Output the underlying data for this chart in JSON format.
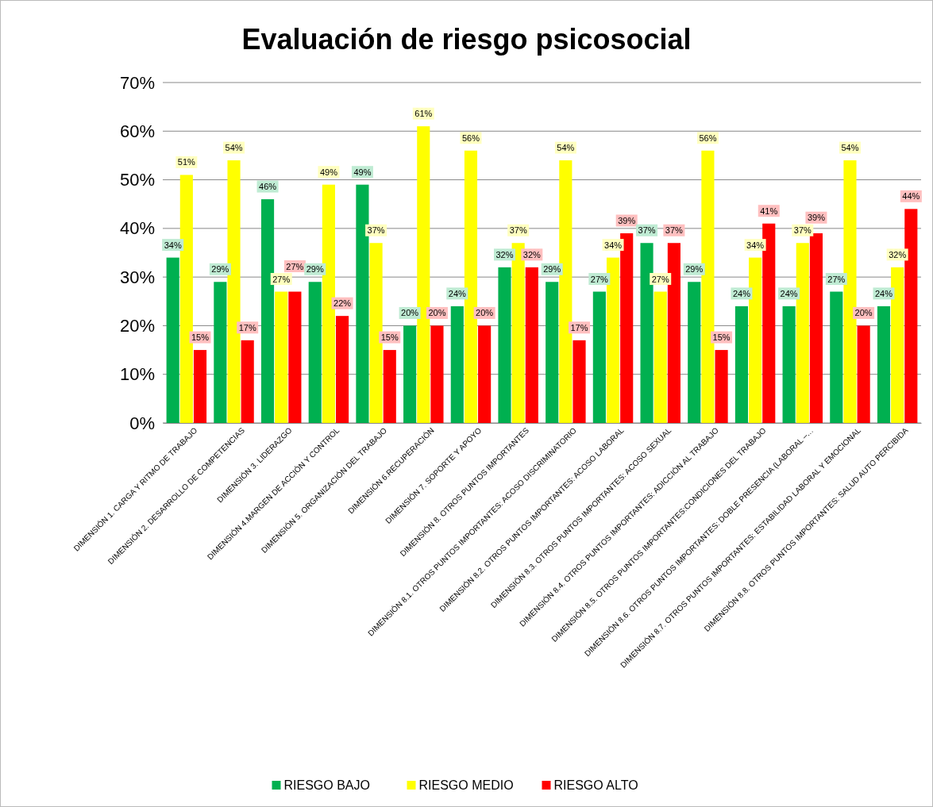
{
  "chart_data": {
    "type": "bar",
    "title": "Evaluación de riesgo psicosocial",
    "categories": [
      "DIMENSIÓN 1. CARGA Y RITMO DE TRABAJO",
      "DIMENSIÓN 2. DESARROLLO DE COMPETENCIAS",
      "DIMENSIÓN 3. LIDERAZGO",
      "DIMENSIÓN 4.MARGEN DE ACCIÓN Y CONTROL",
      "DIMENSIÓN 5. ORGANIZACIÓN DEL TRABAJO",
      "DIMENSIÓN 6.RECUPERACIÓN",
      "DIMENSIÓN 7. SOPORTE Y APOYO",
      "DIMENSIÓN 8. OTROS PUNTOS IMPORTANTES",
      "DIMENSIÓN 8.1. OTROS PUNTOS IMPORTANTES: ACOSO DISCRIMINATORIO",
      "DIMENSIÓN 8.2. OTROS PUNTOS IMPORTANTES: ACOSO LABORAL",
      "DIMENSIÓN 8.3. OTROS PUNTOS IMPORTANTES: ACOSO SEXUAL",
      "DIMENSIÓN 8.4. OTROS PUNTOS IMPORTANTES: ADICCIÓN AL TRABAJO",
      "DIMENSIÓN 8.5. OTROS PUNTOS IMPORTANTES:CONDICIONES DEL TRABAJO",
      "DIMENSIÓN 8.6. OTROS PUNTOS IMPORTANTES: DOBLE PRESENCIA (LABORAL –…",
      "DIMENSIÓN 8.7. OTROS PUNTOS IMPORTANTES: ESTABILIDAD LABORAL Y EMOCIONAL",
      "DIMENSIÓN 8.8. OTROS PUNTOS IMPORTANTES: SALUD AUTO PERCIBIDA"
    ],
    "series": [
      {
        "name": "RIESGO BAJO",
        "color": "#00b050",
        "values": [
          34,
          29,
          46,
          29,
          49,
          20,
          24,
          32,
          29,
          27,
          37,
          29,
          24,
          24,
          27,
          24
        ],
        "value_labels": [
          "34%",
          "29%",
          "46%",
          "29%",
          "49%",
          "20%",
          "24%",
          "32%",
          "29%",
          "27%",
          "37%",
          "29%",
          "24%",
          "24%",
          "27%",
          "24%"
        ]
      },
      {
        "name": "RIESGO MEDIO",
        "color": "#ffff00",
        "values": [
          51,
          54,
          27,
          49,
          37,
          61,
          56,
          37,
          54,
          34,
          27,
          56,
          34,
          37,
          54,
          32
        ],
        "value_labels": [
          "51%",
          "54%",
          "27%",
          "49%",
          "37%",
          "61%",
          "56%",
          "37%",
          "54%",
          "34%",
          "27%",
          "56%",
          "34%",
          "37%",
          "54%",
          "32%"
        ]
      },
      {
        "name": "RIESGO ALTO",
        "color": "#ff0000",
        "values": [
          15,
          17,
          27,
          22,
          15,
          20,
          20,
          32,
          17,
          39,
          37,
          15,
          41,
          39,
          20,
          44
        ],
        "value_labels": [
          "15%",
          "17%",
          "27%",
          "22%",
          "15%",
          "20%",
          "20%",
          "32%",
          "17%",
          "39%",
          "37%",
          "15%",
          "41%",
          "39%",
          "20%",
          "44%"
        ]
      }
    ],
    "ylim": [
      0,
      70
    ],
    "yticks": [
      {
        "value": 0,
        "label": "0%"
      },
      {
        "value": 10,
        "label": "10%"
      },
      {
        "value": 20,
        "label": "20%"
      },
      {
        "value": 30,
        "label": "30%"
      },
      {
        "value": 40,
        "label": "40%"
      },
      {
        "value": 50,
        "label": "50%"
      },
      {
        "value": 60,
        "label": "60%"
      },
      {
        "value": 70,
        "label": "70%"
      }
    ],
    "grid": "y",
    "legend": "bottom"
  }
}
